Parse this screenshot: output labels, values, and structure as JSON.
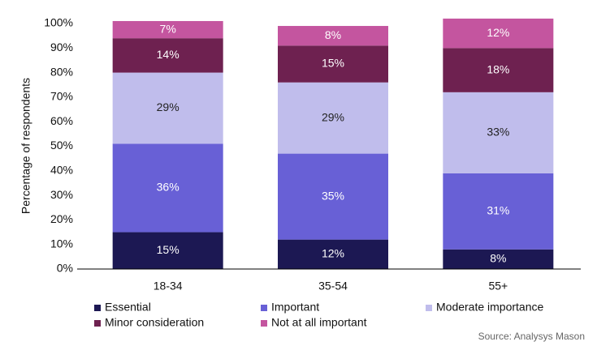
{
  "chart_data": {
    "type": "bar",
    "stacked": true,
    "y_label": "Percentage of respondents",
    "source": "Source: Analysys Mason",
    "categories": [
      "18-34",
      "35-54",
      "55+"
    ],
    "series": [
      {
        "name": "Essential",
        "color": "#1c1853",
        "values": [
          15,
          12,
          8
        ],
        "value_labels": [
          "15%",
          "12%",
          "8%"
        ]
      },
      {
        "name": "Important",
        "color": "#6860d6",
        "values": [
          36,
          35,
          31
        ],
        "value_labels": [
          "36%",
          "35%",
          "31%"
        ]
      },
      {
        "name": "Moderate importance",
        "color": "#c0bdec",
        "values": [
          29,
          29,
          33
        ],
        "value_labels": [
          "29%",
          "29%",
          "33%"
        ]
      },
      {
        "name": "Minor consideration",
        "color": "#6e2150",
        "values": [
          14,
          15,
          18
        ],
        "value_labels": [
          "14%",
          "15%",
          "18%"
        ]
      },
      {
        "name": "Not at all important",
        "color": "#c4559f",
        "values": [
          7,
          8,
          12
        ],
        "value_labels": [
          "7%",
          "8%",
          "12%"
        ]
      }
    ],
    "ylim": [
      0,
      100
    ],
    "yticks": [
      {
        "value": 0,
        "label": "0%"
      },
      {
        "value": 10,
        "label": "10%"
      },
      {
        "value": 20,
        "label": "20%"
      },
      {
        "value": 30,
        "label": "30%"
      },
      {
        "value": 40,
        "label": "40%"
      },
      {
        "value": 50,
        "label": "50%"
      },
      {
        "value": 60,
        "label": "60%"
      },
      {
        "value": 70,
        "label": "70%"
      },
      {
        "value": 80,
        "label": "80%"
      },
      {
        "value": 90,
        "label": "90%"
      },
      {
        "value": 100,
        "label": "100%"
      }
    ],
    "grid": false,
    "legend": "bottom"
  }
}
